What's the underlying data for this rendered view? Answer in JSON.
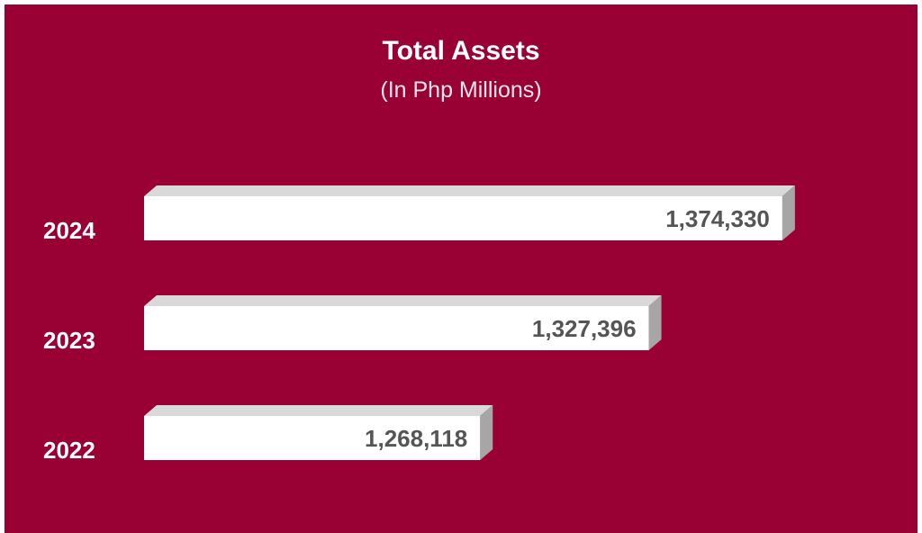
{
  "chart_data": {
    "type": "bar",
    "orientation": "horizontal",
    "title": "Total Assets",
    "subtitle": "(In Php Millions)",
    "categories": [
      "2024",
      "2023",
      "2022"
    ],
    "values": [
      1374330,
      1327396,
      1268118
    ],
    "value_labels": [
      "1,374,330",
      "1,327,396",
      "1,268,118"
    ],
    "xlim": [
      1150000,
      1400000
    ],
    "grid": false,
    "legend": "none"
  },
  "colors": {
    "background": "#990033",
    "bar_face": "#ffffff",
    "bar_top": "#d9d9d9",
    "bar_side": "#a6a6a6",
    "value_text": "#555555",
    "category_text": "#ffffff"
  }
}
